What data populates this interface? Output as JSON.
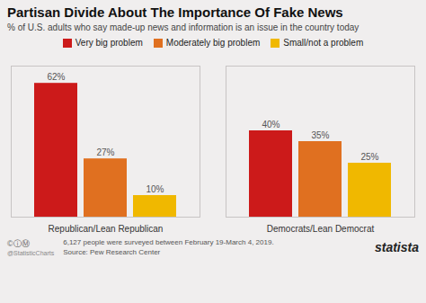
{
  "chart_data": {
    "type": "bar",
    "title": "Partisan Divide About The Importance Of Fake News",
    "subtitle": "% of U.S. adults who say made-up news and information is an issue in the country today",
    "categories": [
      "Republican/Lean Republican",
      "Democrats/Lean Democrat"
    ],
    "series": [
      {
        "name": "Very big problem",
        "color": "#cc1a1a",
        "values": [
          62,
          40
        ],
        "value_labels": [
          "62%",
          "40%"
        ]
      },
      {
        "name": "Moderately big problem",
        "color": "#e07020",
        "values": [
          27,
          35
        ],
        "value_labels": [
          "27%",
          "35%"
        ]
      },
      {
        "name": "Small/not a problem",
        "color": "#f0b800",
        "values": [
          10,
          25
        ],
        "value_labels": [
          "10%",
          "25%"
        ]
      }
    ],
    "ylim": [
      0,
      70
    ],
    "yticks": [],
    "grid": false,
    "legend": "top",
    "data_labels": true,
    "tick_labels": "x",
    "annotations": [
      "©ⓘⓂ",
      "@StatisticCharts",
      "6,127 people were surveyed between February 19-March 4, 2019.",
      "Source: Pew Research Center",
      "statista"
    ]
  }
}
